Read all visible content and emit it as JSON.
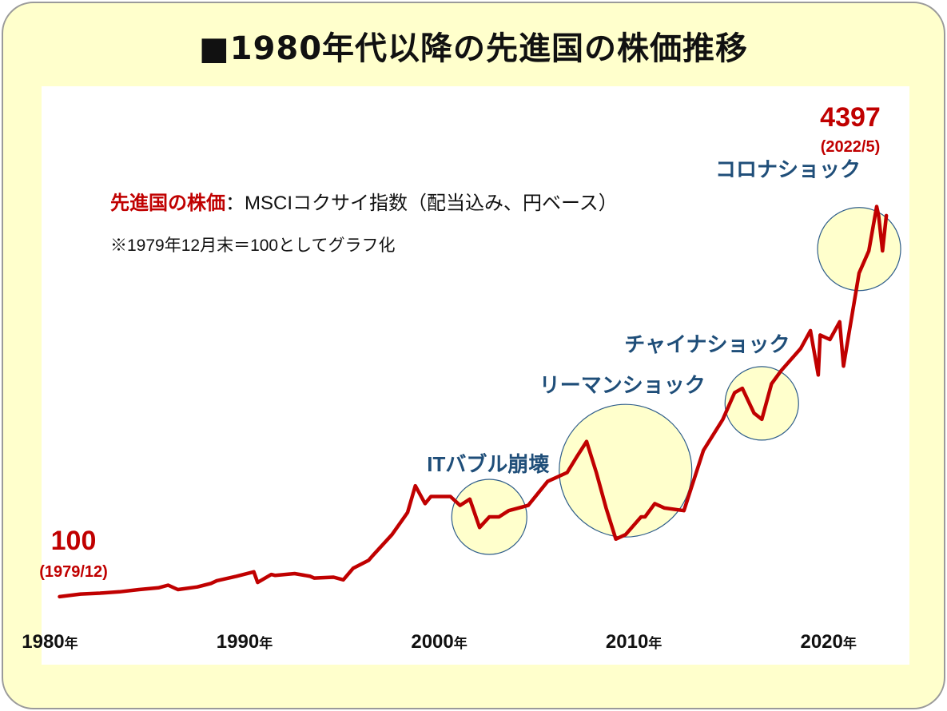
{
  "title": "■1980年代以降の先進国の株価推移",
  "colors": {
    "line": "#c00000",
    "annotation_text": "#1f4e79",
    "circle_fill": "#ffffcc",
    "circle_stroke": "#2e5d8a",
    "panel_bg": "#ffffcc"
  },
  "chart_data": {
    "type": "line",
    "description_label": "先進国の株価",
    "description_rest": "：MSCIコクサイ指数（配当込み、円ベース）",
    "note": "※1979年12月末＝100としてグラフ化",
    "x_tick_labels": [
      {
        "year": "1980",
        "suffix": "年",
        "x": 1980
      },
      {
        "year": "1990",
        "suffix": "年",
        "x": 1990
      },
      {
        "year": "2000",
        "suffix": "年",
        "x": 2000
      },
      {
        "year": "2010",
        "suffix": "年",
        "x": 2010
      },
      {
        "year": "2020",
        "suffix": "年",
        "x": 2020
      }
    ],
    "xlim": [
      1979.9,
      2022.6
    ],
    "ylim": [
      0,
      5000
    ],
    "grid": false,
    "start_label": {
      "value": "100",
      "date": "(1979/12)"
    },
    "end_label": {
      "value": "4397",
      "date": "(2022/5)"
    },
    "annotations": [
      {
        "text": "ITバブル崩壊"
      },
      {
        "text": "リーマンショック"
      },
      {
        "text": "チャイナショック"
      },
      {
        "text": "コロナショック"
      }
    ],
    "series": [
      {
        "x": [
          1979.92,
          1981,
          1982,
          1983,
          1984,
          1985,
          1985.5,
          1986,
          1987,
          1987.7,
          1988,
          1989,
          1989.9,
          1990.1,
          1990.8,
          1991,
          1992,
          1992.8,
          1993,
          1994,
          1994.5,
          1995,
          1995.8,
          1996,
          1997,
          1997.8,
          1998.2,
          1998.7,
          1999,
          2000,
          2000.5,
          2001,
          2001.5,
          2002,
          2002.5,
          2003,
          2004,
          2005,
          2006,
          2006.5,
          2007,
          2007.5,
          2008,
          2008.5,
          2009,
          2009.8,
          2010,
          2010.5,
          2011,
          2012,
          2013,
          2014,
          2014.6,
          2015,
          2015.6,
          2016,
          2016.5,
          2017,
          2018,
          2018.5,
          2018.9,
          2019,
          2019.5,
          2020,
          2020.2,
          2020.5,
          2021,
          2021.5,
          2021.9,
          2022,
          2022.2,
          2022.4
        ],
        "y": [
          100,
          130,
          140,
          155,
          180,
          200,
          230,
          180,
          210,
          250,
          280,
          330,
          380,
          260,
          350,
          340,
          360,
          330,
          310,
          320,
          290,
          420,
          510,
          560,
          800,
          1050,
          1350,
          1150,
          1230,
          1230,
          1130,
          1200,
          880,
          1000,
          1000,
          1070,
          1130,
          1400,
          1500,
          1680,
          1850,
          1500,
          1100,
          750,
          800,
          1000,
          1000,
          1150,
          1100,
          1070,
          1750,
          2100,
          2400,
          2450,
          2170,
          2100,
          2500,
          2650,
          2900,
          3100,
          2600,
          3050,
          3000,
          3200,
          2700,
          3100,
          3750,
          4000,
          4500,
          4400,
          4000,
          4397
        ]
      }
    ]
  }
}
